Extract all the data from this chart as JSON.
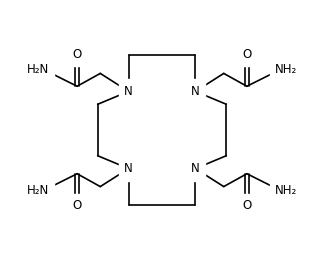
{
  "bg_color": "#ffffff",
  "line_color": "#000000",
  "text_color": "#000000",
  "font_size": 8.5,
  "lw": 1.2,
  "N1": [
    3.7,
    6.5
  ],
  "N2": [
    6.3,
    6.5
  ],
  "N3": [
    3.7,
    3.5
  ],
  "N4": [
    6.3,
    3.5
  ],
  "xlim": [
    0,
    10
  ],
  "ylim": [
    0,
    10
  ]
}
